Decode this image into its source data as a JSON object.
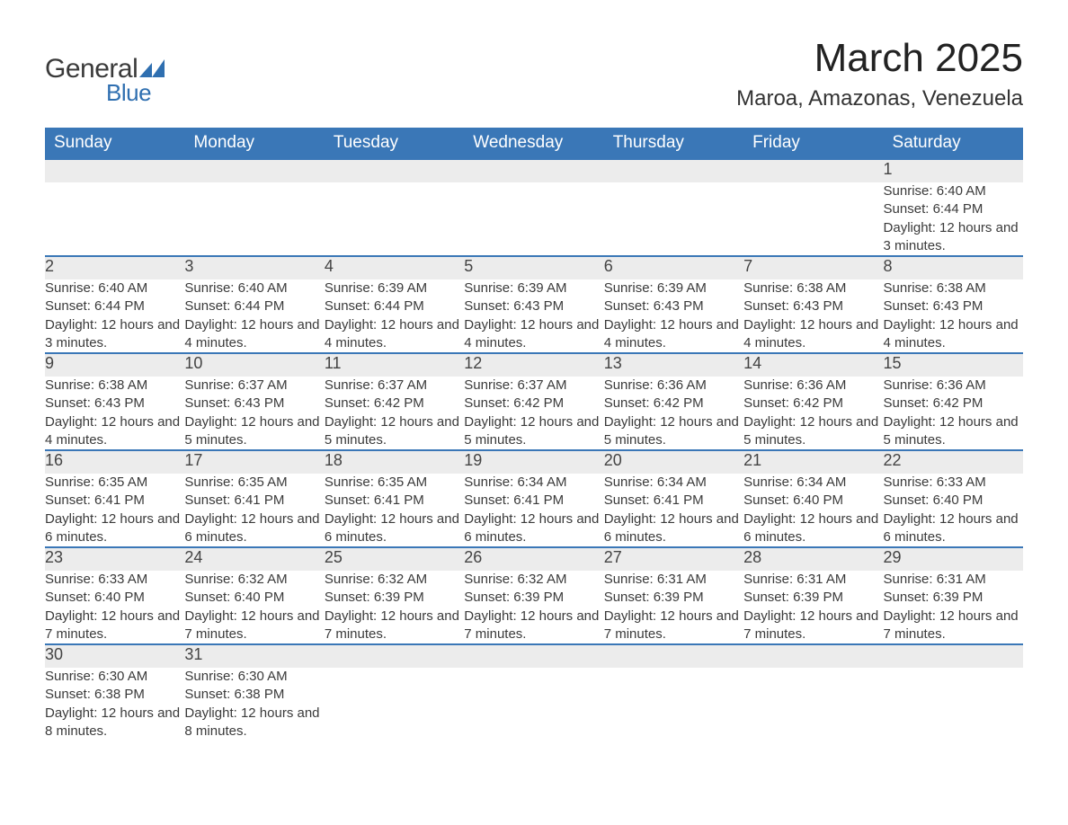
{
  "brand": {
    "general": "General",
    "blue": "Blue",
    "tri_color": "#2f6fb0"
  },
  "title": "March 2025",
  "location": "Maroa, Amazonas, Venezuela",
  "colors": {
    "header_bg": "#3a77b7",
    "header_text": "#ffffff",
    "daynum_bg": "#ececec",
    "row_border": "#3a77b7",
    "body_text": "#3a3a3a"
  },
  "weekdays": [
    "Sunday",
    "Monday",
    "Tuesday",
    "Wednesday",
    "Thursday",
    "Friday",
    "Saturday"
  ],
  "weeks": [
    [
      null,
      null,
      null,
      null,
      null,
      null,
      {
        "n": "1",
        "sr": "Sunrise: 6:40 AM",
        "ss": "Sunset: 6:44 PM",
        "dl": "Daylight: 12 hours and 3 minutes."
      }
    ],
    [
      {
        "n": "2",
        "sr": "Sunrise: 6:40 AM",
        "ss": "Sunset: 6:44 PM",
        "dl": "Daylight: 12 hours and 3 minutes."
      },
      {
        "n": "3",
        "sr": "Sunrise: 6:40 AM",
        "ss": "Sunset: 6:44 PM",
        "dl": "Daylight: 12 hours and 4 minutes."
      },
      {
        "n": "4",
        "sr": "Sunrise: 6:39 AM",
        "ss": "Sunset: 6:44 PM",
        "dl": "Daylight: 12 hours and 4 minutes."
      },
      {
        "n": "5",
        "sr": "Sunrise: 6:39 AM",
        "ss": "Sunset: 6:43 PM",
        "dl": "Daylight: 12 hours and 4 minutes."
      },
      {
        "n": "6",
        "sr": "Sunrise: 6:39 AM",
        "ss": "Sunset: 6:43 PM",
        "dl": "Daylight: 12 hours and 4 minutes."
      },
      {
        "n": "7",
        "sr": "Sunrise: 6:38 AM",
        "ss": "Sunset: 6:43 PM",
        "dl": "Daylight: 12 hours and 4 minutes."
      },
      {
        "n": "8",
        "sr": "Sunrise: 6:38 AM",
        "ss": "Sunset: 6:43 PM",
        "dl": "Daylight: 12 hours and 4 minutes."
      }
    ],
    [
      {
        "n": "9",
        "sr": "Sunrise: 6:38 AM",
        "ss": "Sunset: 6:43 PM",
        "dl": "Daylight: 12 hours and 4 minutes."
      },
      {
        "n": "10",
        "sr": "Sunrise: 6:37 AM",
        "ss": "Sunset: 6:43 PM",
        "dl": "Daylight: 12 hours and 5 minutes."
      },
      {
        "n": "11",
        "sr": "Sunrise: 6:37 AM",
        "ss": "Sunset: 6:42 PM",
        "dl": "Daylight: 12 hours and 5 minutes."
      },
      {
        "n": "12",
        "sr": "Sunrise: 6:37 AM",
        "ss": "Sunset: 6:42 PM",
        "dl": "Daylight: 12 hours and 5 minutes."
      },
      {
        "n": "13",
        "sr": "Sunrise: 6:36 AM",
        "ss": "Sunset: 6:42 PM",
        "dl": "Daylight: 12 hours and 5 minutes."
      },
      {
        "n": "14",
        "sr": "Sunrise: 6:36 AM",
        "ss": "Sunset: 6:42 PM",
        "dl": "Daylight: 12 hours and 5 minutes."
      },
      {
        "n": "15",
        "sr": "Sunrise: 6:36 AM",
        "ss": "Sunset: 6:42 PM",
        "dl": "Daylight: 12 hours and 5 minutes."
      }
    ],
    [
      {
        "n": "16",
        "sr": "Sunrise: 6:35 AM",
        "ss": "Sunset: 6:41 PM",
        "dl": "Daylight: 12 hours and 6 minutes."
      },
      {
        "n": "17",
        "sr": "Sunrise: 6:35 AM",
        "ss": "Sunset: 6:41 PM",
        "dl": "Daylight: 12 hours and 6 minutes."
      },
      {
        "n": "18",
        "sr": "Sunrise: 6:35 AM",
        "ss": "Sunset: 6:41 PM",
        "dl": "Daylight: 12 hours and 6 minutes."
      },
      {
        "n": "19",
        "sr": "Sunrise: 6:34 AM",
        "ss": "Sunset: 6:41 PM",
        "dl": "Daylight: 12 hours and 6 minutes."
      },
      {
        "n": "20",
        "sr": "Sunrise: 6:34 AM",
        "ss": "Sunset: 6:41 PM",
        "dl": "Daylight: 12 hours and 6 minutes."
      },
      {
        "n": "21",
        "sr": "Sunrise: 6:34 AM",
        "ss": "Sunset: 6:40 PM",
        "dl": "Daylight: 12 hours and 6 minutes."
      },
      {
        "n": "22",
        "sr": "Sunrise: 6:33 AM",
        "ss": "Sunset: 6:40 PM",
        "dl": "Daylight: 12 hours and 6 minutes."
      }
    ],
    [
      {
        "n": "23",
        "sr": "Sunrise: 6:33 AM",
        "ss": "Sunset: 6:40 PM",
        "dl": "Daylight: 12 hours and 7 minutes."
      },
      {
        "n": "24",
        "sr": "Sunrise: 6:32 AM",
        "ss": "Sunset: 6:40 PM",
        "dl": "Daylight: 12 hours and 7 minutes."
      },
      {
        "n": "25",
        "sr": "Sunrise: 6:32 AM",
        "ss": "Sunset: 6:39 PM",
        "dl": "Daylight: 12 hours and 7 minutes."
      },
      {
        "n": "26",
        "sr": "Sunrise: 6:32 AM",
        "ss": "Sunset: 6:39 PM",
        "dl": "Daylight: 12 hours and 7 minutes."
      },
      {
        "n": "27",
        "sr": "Sunrise: 6:31 AM",
        "ss": "Sunset: 6:39 PM",
        "dl": "Daylight: 12 hours and 7 minutes."
      },
      {
        "n": "28",
        "sr": "Sunrise: 6:31 AM",
        "ss": "Sunset: 6:39 PM",
        "dl": "Daylight: 12 hours and 7 minutes."
      },
      {
        "n": "29",
        "sr": "Sunrise: 6:31 AM",
        "ss": "Sunset: 6:39 PM",
        "dl": "Daylight: 12 hours and 7 minutes."
      }
    ],
    [
      {
        "n": "30",
        "sr": "Sunrise: 6:30 AM",
        "ss": "Sunset: 6:38 PM",
        "dl": "Daylight: 12 hours and 8 minutes."
      },
      {
        "n": "31",
        "sr": "Sunrise: 6:30 AM",
        "ss": "Sunset: 6:38 PM",
        "dl": "Daylight: 12 hours and 8 minutes."
      },
      null,
      null,
      null,
      null,
      null
    ]
  ]
}
